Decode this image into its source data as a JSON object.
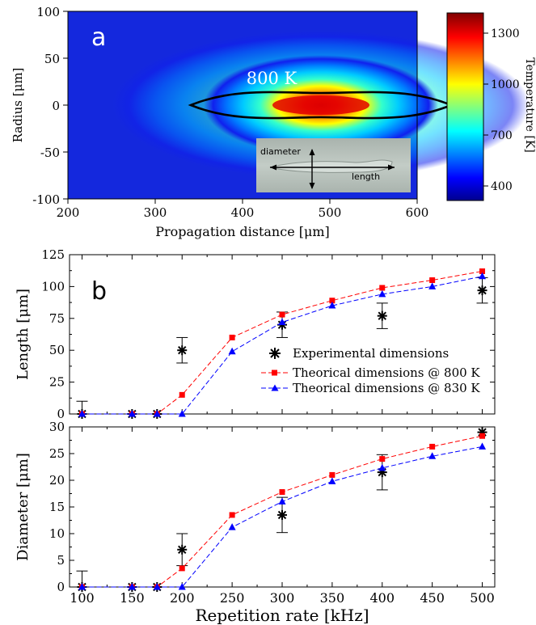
{
  "chart_data": [
    {
      "type": "heatmap",
      "panel_label": "a",
      "xlabel": "Propagation distance [μm]",
      "ylabel": "Radius [μm]",
      "xlim": [
        200,
        600
      ],
      "ylim": [
        -100,
        100
      ],
      "x_ticks": [
        "200",
        "300",
        "400",
        "500",
        "600"
      ],
      "y_ticks": [
        "100",
        "50",
        "0",
        "-50",
        "-100"
      ],
      "contour_label": "800 K",
      "colorbar": {
        "label": "Temperature [K]",
        "ticks": [
          "1300",
          "1000",
          "700",
          "400"
        ],
        "range": [
          300,
          1400
        ],
        "colors": [
          "#00008f",
          "#0000ff",
          "#00ffff",
          "#ffff00",
          "#ff0000",
          "#800000"
        ]
      },
      "inset_labels": {
        "diameter": "diameter",
        "length": "length"
      }
    },
    {
      "type": "scatter",
      "panel_label": "b",
      "ylabel": "Length [μm]",
      "xlim": [
        87.5,
        512.5
      ],
      "ylim": [
        0,
        125
      ],
      "y_ticks": [
        0,
        25,
        50,
        75,
        100,
        125
      ],
      "series": [
        {
          "name": "Experimental dimensions",
          "color": "#000000",
          "marker": "star",
          "x": [
            100,
            150,
            175,
            200,
            300,
            400,
            500
          ],
          "y": [
            0,
            0,
            0,
            50,
            70,
            77,
            97
          ],
          "err": [
            10,
            0,
            0,
            10,
            10,
            10,
            10
          ]
        },
        {
          "name": "Theorical dimensions @ 800 K",
          "color": "#ff0000",
          "marker": "square",
          "x": [
            100,
            150,
            175,
            200,
            250,
            300,
            350,
            400,
            450,
            500
          ],
          "y": [
            0,
            0,
            0,
            15,
            60,
            78,
            89,
            99,
            105,
            112
          ]
        },
        {
          "name": "Theorical dimensions @ 830 K",
          "color": "#0000ff",
          "marker": "triangle",
          "x": [
            100,
            150,
            175,
            200,
            250,
            300,
            350,
            400,
            450,
            500
          ],
          "y": [
            0,
            0,
            0,
            0,
            49,
            72,
            85,
            94,
            100,
            108
          ]
        }
      ]
    },
    {
      "type": "scatter",
      "xlabel": "Repetition rate [kHz]",
      "ylabel": "Diameter [μm]",
      "xlim": [
        87.5,
        512.5
      ],
      "ylim": [
        0,
        30
      ],
      "x_ticks": [
        100,
        150,
        200,
        250,
        300,
        350,
        400,
        450,
        500
      ],
      "y_ticks": [
        0,
        5,
        10,
        15,
        20,
        25,
        30
      ],
      "series": [
        {
          "name": "Experimental dimensions",
          "color": "#000000",
          "marker": "star",
          "x": [
            100,
            150,
            175,
            200,
            300,
            400,
            500
          ],
          "y": [
            0,
            0,
            0,
            7,
            13.5,
            21.5,
            29
          ],
          "err": [
            3,
            0,
            0,
            3,
            3.3,
            3.3,
            0
          ]
        },
        {
          "name": "Theorical dimensions @ 800 K",
          "color": "#ff0000",
          "marker": "square",
          "x": [
            100,
            150,
            175,
            200,
            250,
            300,
            350,
            400,
            450,
            500
          ],
          "y": [
            0,
            0,
            0,
            3.5,
            13.5,
            17.8,
            21,
            24,
            26.3,
            28.3
          ]
        },
        {
          "name": "Theorical dimensions @ 830 K",
          "color": "#0000ff",
          "marker": "triangle",
          "x": [
            100,
            150,
            175,
            200,
            250,
            300,
            350,
            400,
            450,
            500
          ],
          "y": [
            0,
            0,
            0,
            0,
            11.2,
            16,
            19.8,
            22.3,
            24.5,
            26.3
          ]
        }
      ]
    }
  ]
}
